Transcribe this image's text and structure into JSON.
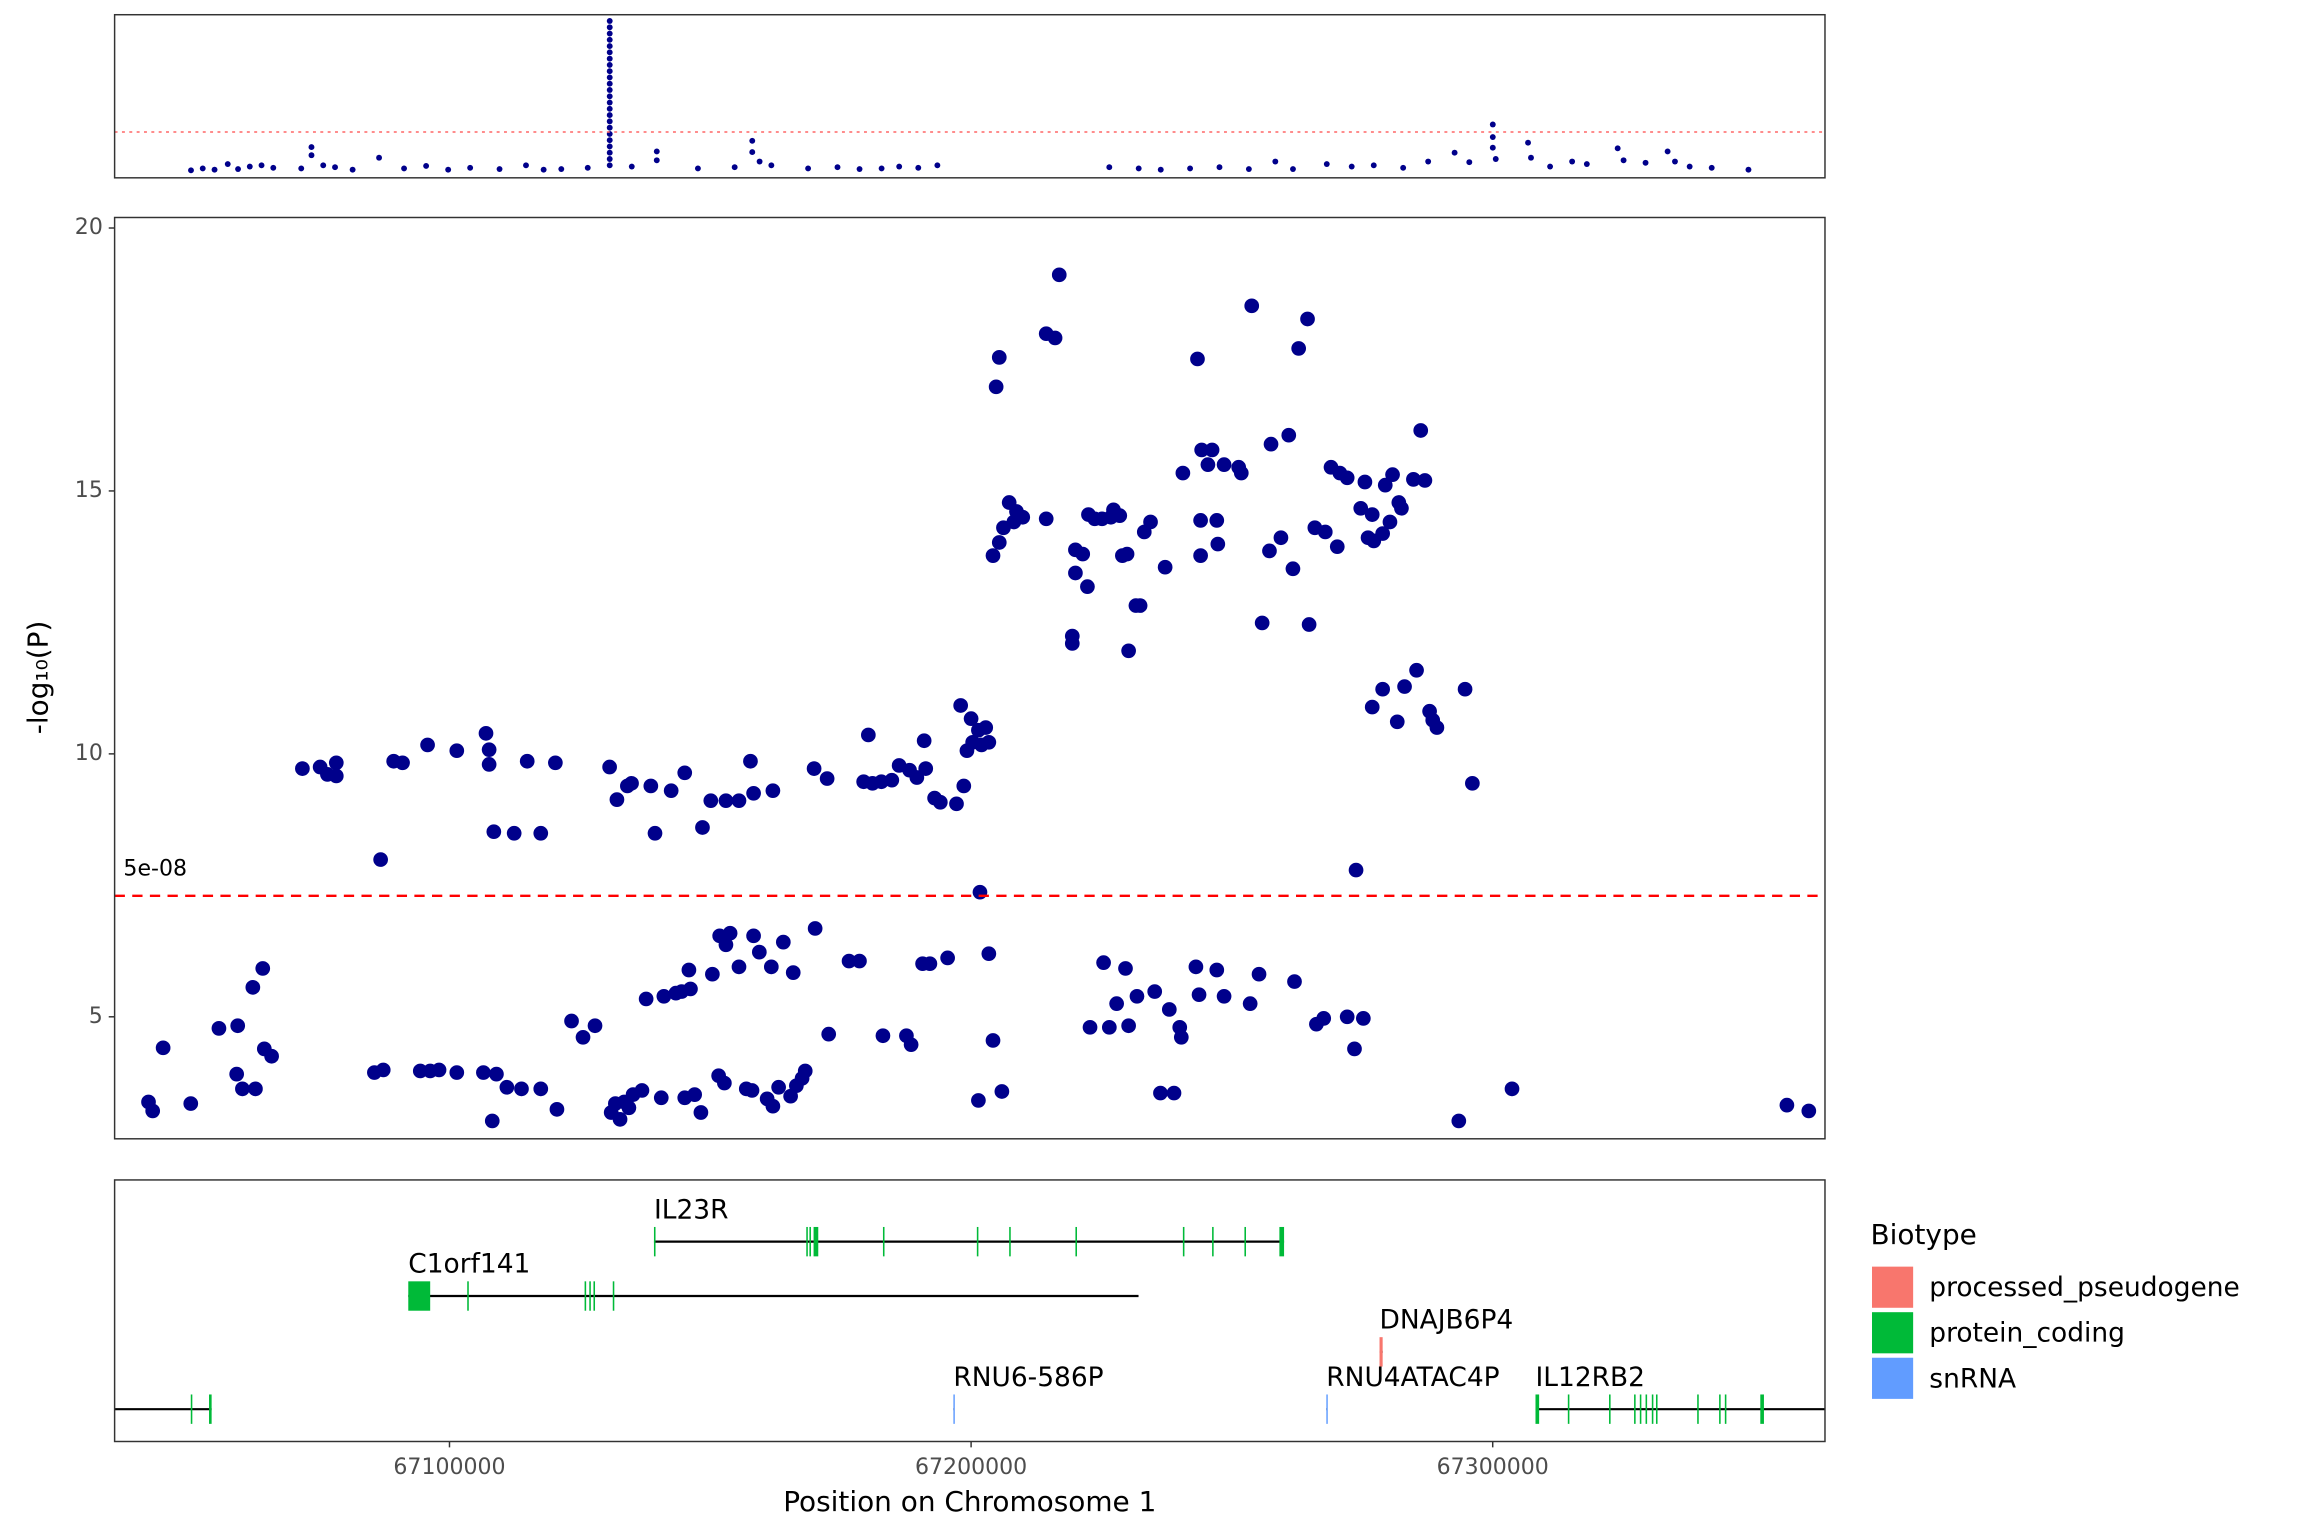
{
  "chart_data": [
    {
      "type": "scatter",
      "color": "#00008b",
      "xlim": [
        0,
        249
      ],
      "ylim": [
        0,
        26
      ],
      "threshold": 7.3,
      "threshold_color": "#ff6666",
      "x": [
        11.12,
        12.83,
        14.55,
        16.47,
        17.97,
        19.68,
        21.39,
        23.1,
        27.17,
        28.66,
        28.66,
        30.37,
        32.09,
        34.65,
        38.5,
        42.14,
        45.35,
        48.56,
        51.76,
        56.04,
        59.89,
        62.46,
        65.03,
        68.88,
        75.29,
        78.93,
        78.93,
        84.92,
        90.27,
        92.83,
        92.83,
        93.9,
        95.61,
        100.96,
        105.24,
        108.45,
        111.66,
        114.22,
        117.0,
        119.78,
        144.81,
        149.09,
        152.3,
        156.57,
        160.85,
        165.13,
        168.98,
        171.55,
        176.47,
        180.1,
        183.31,
        187.59,
        191.23,
        195.08,
        197.22,
        200.64,
        200.64,
        200.64,
        201.07,
        205.77,
        206.2,
        208.98,
        212.19,
        214.33,
        218.82,
        219.68,
        222.88,
        226.09,
        227.16,
        229.3,
        232.51,
        237.86,
        72.08,
        72.08,
        72.08,
        72.08,
        72.08,
        72.08,
        72.08,
        72.08,
        72.08,
        72.08,
        72.08,
        72.08,
        72.08,
        72.08,
        72.08,
        72.08,
        72.08,
        72.08,
        72.08,
        72.08,
        72.08,
        72.08,
        72.08,
        72.08
      ],
      "values": [
        1.2,
        1.5,
        1.3,
        2.2,
        1.4,
        1.8,
        2.0,
        1.6,
        1.5,
        4.9,
        3.6,
        2.0,
        1.7,
        1.3,
        3.2,
        1.5,
        1.9,
        1.3,
        1.6,
        1.4,
        2.0,
        1.3,
        1.4,
        1.6,
        1.8,
        4.2,
        2.8,
        1.5,
        1.7,
        5.9,
        4.1,
        2.6,
        2.0,
        1.5,
        1.7,
        1.4,
        1.5,
        1.8,
        1.6,
        2.0,
        1.7,
        1.5,
        1.3,
        1.5,
        1.7,
        1.4,
        2.6,
        1.4,
        2.2,
        1.8,
        2.0,
        1.6,
        2.6,
        4.0,
        2.5,
        8.5,
        6.5,
        4.8,
        3.0,
        5.6,
        3.2,
        1.8,
        2.6,
        2.2,
        4.7,
        2.8,
        2.4,
        4.2,
        2.6,
        1.8,
        1.6,
        1.3,
        2,
        3,
        4,
        5,
        6,
        7,
        8,
        9,
        10,
        11,
        12,
        13,
        14,
        15,
        16,
        17,
        18,
        19,
        20,
        21,
        22,
        23,
        24,
        25
      ]
    },
    {
      "type": "scatter",
      "ylabel": "-log₁₀(P)",
      "color": "#00008b",
      "xlim": [
        67035800,
        67363700
      ],
      "ylim": [
        2.68,
        20.2
      ],
      "yticks": [
        5,
        10,
        15,
        20
      ],
      "threshold": {
        "value": 7.30103,
        "label": "5e-08"
      },
      "threshold_color": "#ff0000",
      "x": [
        67042300,
        67043100,
        67045100,
        67050400,
        67055800,
        67059400,
        67059200,
        67060300,
        67062300,
        67062800,
        67064200,
        67064500,
        67065900,
        67071800,
        67075200,
        67076600,
        67078300,
        67078300,
        67086800,
        67089300,
        67091000,
        67095800,
        67101400,
        67107000,
        67107600,
        67107600,
        67108500,
        67112400,
        67114900,
        67117500,
        67120300,
        67085600,
        67087300,
        67094400,
        67096300,
        67098000,
        67101400,
        67106500,
        67108200,
        67109000,
        67111000,
        67113800,
        67117500,
        67120600,
        67123400,
        67125600,
        67127900,
        67130700,
        67132100,
        67134100,
        67134900,
        67138600,
        67142500,
        67145100,
        67139400,
        67148500,
        67150100,
        67153000,
        67155500,
        67157700,
        67158300,
        67162000,
        67131000,
        67131800,
        67132700,
        67133500,
        67134400,
        67135200,
        67136900,
        67137700,
        67141100,
        67143400,
        67144500,
        67146200,
        67145900,
        67140600,
        67145100,
        67147000,
        67148200,
        67150400,
        67151800,
        67153000,
        67153800,
        67155500,
        67158300,
        67159400,
        67161700,
        67164000,
        67165900,
        67167600,
        67170100,
        67151600,
        67152700,
        67156900,
        67158000,
        67160900,
        67162000,
        67163100,
        67165400,
        67166500,
        67168200,
        67169900,
        67172400,
        67172700,
        67176600,
        67178600,
        67179400,
        67180300,
        67181100,
        67182800,
        67184800,
        67186200,
        67188200,
        67189600,
        67191000,
        67191300,
        67193000,
        67194100,
        67183100,
        67187600,
        67188500,
        67190700,
        67192100,
        67195500,
        67197200,
        67198000,
        67198600,
        67199200,
        67200000,
        67200300,
        67201400,
        67202000,
        67202800,
        67203400,
        67201700,
        67201400,
        67203400,
        67204200,
        67205900,
        67204200,
        67204800,
        67205400,
        67205400,
        67206200,
        67207300,
        67208200,
        67208700,
        67209900,
        67214400,
        67214400,
        67216100,
        67216900,
        67219400,
        67219400,
        67220000,
        67220000,
        67221400,
        67222300,
        67222500,
        67223700,
        67225100,
        67226800,
        67227300,
        67228500,
        67229000,
        67229900,
        67230200,
        67231600,
        67232400,
        67233200,
        67234400,
        67237200,
        67240600,
        67243400,
        67244000,
        67244000,
        67244200,
        67245400,
        67246200,
        67247100,
        67247300,
        67248500,
        67251300,
        67251800,
        67253800,
        67255800,
        67257200,
        67257500,
        67259400,
        67260900,
        67261700,
        67262800,
        67264500,
        67264800,
        67265900,
        67267900,
        67269000,
        67270200,
        67270700,
        67272100,
        67274700,
        67275500,
        67276100,
        67276900,
        67277200,
        67278900,
        67279400,
        67280300,
        67280800,
        67282000,
        67282500,
        67284800,
        67286200,
        67287000,
        67222800,
        67225400,
        67226500,
        67227900,
        67229600,
        67230200,
        67231800,
        67235200,
        67236300,
        67238000,
        67238900,
        67240000,
        67240300,
        67243100,
        67243700,
        67247100,
        67248500,
        67255200,
        67253500,
        67262000,
        67266200,
        67267600,
        67272100,
        67273500,
        67275200,
        67276900,
        67278900,
        67281700,
        67283100,
        67285400,
        67287900,
        67288500,
        67289300,
        67294700,
        67296100,
        67273800,
        67293500,
        67303700,
        67356400,
        67360600
      ],
      "values": [
        3.38,
        3.21,
        4.41,
        3.35,
        4.78,
        4.83,
        3.91,
        3.63,
        5.56,
        3.63,
        5.92,
        4.39,
        4.25,
        9.72,
        9.75,
        9.61,
        9.83,
        9.58,
        7.99,
        9.86,
        9.83,
        10.17,
        10.06,
        10.39,
        10.08,
        9.8,
        8.52,
        8.49,
        9.86,
        8.49,
        9.83,
        3.94,
        3.99,
        3.97,
        3.97,
        3.99,
        3.94,
        3.94,
        3.02,
        3.91,
        3.66,
        3.63,
        3.63,
        3.24,
        4.92,
        4.61,
        4.83,
        9.75,
        9.13,
        9.39,
        9.44,
        9.39,
        9.3,
        9.64,
        8.49,
        8.6,
        9.11,
        9.11,
        9.11,
        9.86,
        9.25,
        9.3,
        3.18,
        3.35,
        3.05,
        3.38,
        3.27,
        3.52,
        3.6,
        5.34,
        5.39,
        5.45,
        5.48,
        5.53,
        5.89,
        3.46,
        3.46,
        3.52,
        3.18,
        5.81,
        6.54,
        6.37,
        6.59,
        5.95,
        6.54,
        6.23,
        5.95,
        6.42,
        5.84,
        3.83,
        6.68,
        3.88,
        3.74,
        3.63,
        3.6,
        3.44,
        3.3,
        3.66,
        3.49,
        3.69,
        3.97,
        9.72,
        9.53,
        4.67,
        6.06,
        6.06,
        9.47,
        10.36,
        9.44,
        9.47,
        9.5,
        9.78,
        9.69,
        9.55,
        10.25,
        9.72,
        9.16,
        9.08,
        4.64,
        4.64,
        4.47,
        6.01,
        6.01,
        6.12,
        9.05,
        10.92,
        9.39,
        10.06,
        10.67,
        10.22,
        10.45,
        10.17,
        10.5,
        10.22,
        7.37,
        3.41,
        6.2,
        4.55,
        3.58,
        13.77,
        16.98,
        17.54,
        14.02,
        14.3,
        14.78,
        14.41,
        14.61,
        14.5,
        14.47,
        17.99,
        17.91,
        19.11,
        12.1,
        12.24,
        13.88,
        13.44,
        13.8,
        13.18,
        14.55,
        14.47,
        14.47,
        14.5,
        14.64,
        14.53,
        13.77,
        13.8,
        11.96,
        12.82,
        12.82,
        14.22,
        14.41,
        13.55,
        15.34,
        17.51,
        14.44,
        13.77,
        15.78,
        15.5,
        15.78,
        14.44,
        13.99,
        15.5,
        15.45,
        15.34,
        18.52,
        12.49,
        13.86,
        15.89,
        14.11,
        16.06,
        13.52,
        17.71,
        18.27,
        12.46,
        14.3,
        14.22,
        15.45,
        13.94,
        15.34,
        15.25,
        14.67,
        15.17,
        14.11,
        14.55,
        14.05,
        14.19,
        15.11,
        14.41,
        15.31,
        14.78,
        14.67,
        15.22,
        16.15,
        15.2,
        4.8,
        6.03,
        4.8,
        5.25,
        5.92,
        4.83,
        5.39,
        5.48,
        3.55,
        5.14,
        3.55,
        4.8,
        4.61,
        5.95,
        5.42,
        5.89,
        5.39,
        5.81,
        5.25,
        5.67,
        4.86,
        4.97,
        5.0,
        4.39,
        4.97,
        10.89,
        11.23,
        10.61,
        11.28,
        11.59,
        10.81,
        10.64,
        10.5,
        11.23,
        9.44,
        7.79,
        3.02,
        3.63,
        3.32,
        3.21
      ]
    },
    {
      "type": "gene_track",
      "xlabel": "Position on Chromosome 1",
      "xlim": [
        67035800,
        67363700
      ],
      "xticks": [
        67100000,
        67200000,
        67300000
      ],
      "genes": [
        {
          "name": null,
          "biotype": "protein_coding",
          "start": 67020000,
          "end": 67054400,
          "exons": [
            [
              67050400,
              67050700
            ],
            [
              67053900,
              67054400
            ]
          ]
        },
        {
          "name": "C1orf141",
          "biotype": "protein_coding",
          "start": 67092100,
          "end": 67232100,
          "exons": [
            [
              67092100,
              67096300
            ],
            [
              67103400,
              67103700
            ],
            [
              67125900,
              67126200
            ],
            [
              67126800,
              67127100
            ],
            [
              67127600,
              67127900
            ],
            [
              67131300,
              67131600
            ]
          ]
        },
        {
          "name": "IL23R",
          "biotype": "protein_coding",
          "start": 67139200,
          "end": 67260000,
          "exons": [
            [
              67139200,
              67139500
            ],
            [
              67168400,
              67168700
            ],
            [
              67169000,
              67169300
            ],
            [
              67169800,
              67170700
            ],
            [
              67183100,
              67183400
            ],
            [
              67201100,
              67201400
            ],
            [
              67207300,
              67207600
            ],
            [
              67220000,
              67220300
            ],
            [
              67240600,
              67240900
            ],
            [
              67246200,
              67246500
            ],
            [
              67252400,
              67252700
            ],
            [
              67259100,
              67260000
            ]
          ]
        },
        {
          "name": "RNU6-586P",
          "biotype": "snRNA",
          "start": 67196600,
          "end": 67196800,
          "exons": [
            [
              67196600,
              67196800
            ]
          ]
        },
        {
          "name": "RNU4ATAC4P",
          "biotype": "snRNA",
          "start": 67268100,
          "end": 67268300,
          "exons": [
            [
              67268100,
              67268300
            ]
          ]
        },
        {
          "name": "DNAJB6P4",
          "biotype": "processed_pseudogene",
          "start": 67278300,
          "end": 67278900,
          "exons": [
            [
              67278300,
              67278900
            ]
          ]
        },
        {
          "name": "IL12RB2",
          "biotype": "protein_coding",
          "start": 67308200,
          "end": 67400000,
          "exons": [
            [
              67308200,
              67308900
            ],
            [
              67314400,
              67314700
            ],
            [
              67322300,
              67322600
            ],
            [
              67327100,
              67327400
            ],
            [
              67328200,
              67328500
            ],
            [
              67329300,
              67329600
            ],
            [
              67330500,
              67330800
            ],
            [
              67331300,
              67331600
            ],
            [
              67339200,
              67339500
            ],
            [
              67343400,
              67343700
            ],
            [
              67344500,
              67344800
            ],
            [
              67351300,
              67352000
            ]
          ]
        }
      ],
      "legend": {
        "title": "Biotype",
        "entries": [
          {
            "name": "processed_pseudogene",
            "color": "#f8766d"
          },
          {
            "name": "protein_coding",
            "color": "#00ba38"
          },
          {
            "name": "snRNA",
            "color": "#619cff"
          }
        ]
      }
    }
  ]
}
